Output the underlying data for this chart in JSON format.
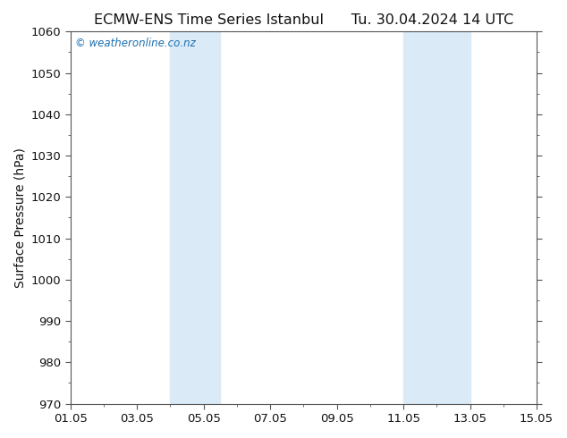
{
  "title_left": "ECMW-ENS Time Series Istanbul",
  "title_right": "Tu. 30.04.2024 14 UTC",
  "ylabel": "Surface Pressure (hPa)",
  "ylim": [
    970,
    1060
  ],
  "yticks": [
    970,
    980,
    990,
    1000,
    1010,
    1020,
    1030,
    1040,
    1050,
    1060
  ],
  "xlim_start": 0,
  "xlim_end": 14,
  "xtick_positions": [
    0,
    2,
    4,
    6,
    8,
    10,
    12,
    14
  ],
  "xtick_labels": [
    "01.05",
    "03.05",
    "05.05",
    "07.05",
    "09.05",
    "11.05",
    "13.05",
    "15.05"
  ],
  "shaded_bands": [
    {
      "x_start": 3.0,
      "x_end": 4.5
    },
    {
      "x_start": 10.0,
      "x_end": 12.0
    }
  ],
  "shaded_color": "#daeaf7",
  "background_color": "#ffffff",
  "plot_bg_color": "#ffffff",
  "watermark_text": "© weatheronline.co.nz",
  "watermark_color": "#1a6faf",
  "title_color": "#111111",
  "axis_color": "#111111",
  "spine_color": "#555555",
  "title_fontsize": 11.5,
  "label_fontsize": 10,
  "tick_fontsize": 9.5,
  "watermark_fontsize": 8.5
}
